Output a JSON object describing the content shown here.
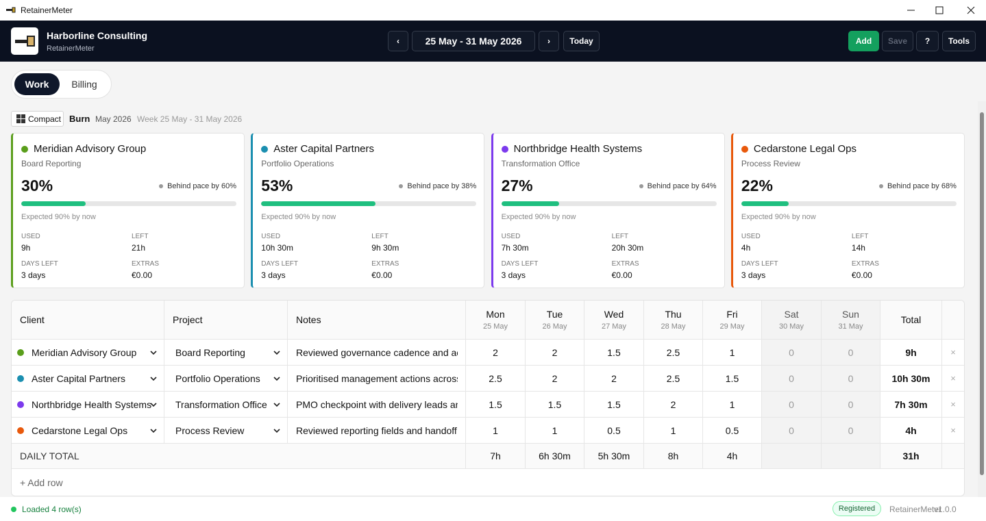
{
  "window": {
    "title": "RetainerMeter"
  },
  "header": {
    "company": "Harborline Consulting",
    "app": "RetainerMeter",
    "prev": "‹",
    "range": "25 May - 31 May 2026",
    "next": "›",
    "today": "Today",
    "add": "Add",
    "save": "Save",
    "help": "?",
    "tools": "Tools"
  },
  "tabs": [
    "Work",
    "Billing"
  ],
  "toolbar": {
    "compact": "Compact",
    "burn": "Burn",
    "month": "May 2026",
    "week": "Week 25 May - 31 May 2026"
  },
  "cards": [
    {
      "client": "Meridian Advisory Group",
      "color": "#5a9e1b",
      "project": "Board Reporting",
      "percent": {
        "value": 30,
        "label": "30%"
      },
      "pace": "Behind pace by 60%",
      "expected": "Expected 90% by now",
      "used_label": "USED",
      "used": "9h",
      "left_label": "LEFT",
      "left": "21h",
      "days_label": "DAYS LEFT",
      "days": "3 days",
      "extras_label": "EXTRAS",
      "extras": "€0.00"
    },
    {
      "client": "Aster Capital Partners",
      "color": "#1b8fb0",
      "project": "Portfolio Operations",
      "percent": {
        "value": 53,
        "label": "53%"
      },
      "pace": "Behind pace by 38%",
      "expected": "Expected 90% by now",
      "used_label": "USED",
      "used": "10h 30m",
      "left_label": "LEFT",
      "left": "9h 30m",
      "days_label": "DAYS LEFT",
      "days": "3 days",
      "extras_label": "EXTRAS",
      "extras": "€0.00"
    },
    {
      "client": "Northbridge Health Systems",
      "color": "#7c3aed",
      "project": "Transformation Office",
      "percent": {
        "value": 27,
        "label": "27%"
      },
      "pace": "Behind pace by 64%",
      "expected": "Expected 90% by now",
      "used_label": "USED",
      "used": "7h 30m",
      "left_label": "LEFT",
      "left": "20h 30m",
      "days_label": "DAYS LEFT",
      "days": "3 days",
      "extras_label": "EXTRAS",
      "extras": "€0.00"
    },
    {
      "client": "Cedarstone Legal Ops",
      "color": "#e8590c",
      "project": "Process Review",
      "percent": {
        "value": 22,
        "label": "22%"
      },
      "pace": "Behind pace by 68%",
      "expected": "Expected 90% by now",
      "used_label": "USED",
      "used": "4h",
      "left_label": "LEFT",
      "left": "14h",
      "days_label": "DAYS LEFT",
      "days": "3 days",
      "extras_label": "EXTRAS",
      "extras": "€0.00"
    }
  ],
  "table": {
    "headers": {
      "client": "Client",
      "project": "Project",
      "notes": "Notes",
      "total": "Total",
      "days": [
        {
          "day": "Mon",
          "date": "25 May"
        },
        {
          "day": "Tue",
          "date": "26 May"
        },
        {
          "day": "Wed",
          "date": "27 May"
        },
        {
          "day": "Thu",
          "date": "28 May"
        },
        {
          "day": "Fri",
          "date": "29 May"
        },
        {
          "day": "Sat",
          "date": "30 May"
        },
        {
          "day": "Sun",
          "date": "31 May"
        }
      ]
    },
    "rows": [
      {
        "client": "Meridian Advisory Group",
        "color": "#5a9e1b",
        "project": "Board Reporting",
        "notes": "Reviewed governance cadence and actions",
        "hours": [
          "2",
          "2",
          "1.5",
          "2.5",
          "1",
          "0",
          "0"
        ],
        "total": "9h"
      },
      {
        "client": "Aster Capital Partners",
        "color": "#1b8fb0",
        "project": "Portfolio Operations",
        "notes": "Prioritised management actions across",
        "hours": [
          "2.5",
          "2",
          "2",
          "2.5",
          "1.5",
          "0",
          "0"
        ],
        "total": "10h 30m"
      },
      {
        "client": "Northbridge Health Systems",
        "color": "#7c3aed",
        "project": "Transformation Office",
        "notes": "PMO checkpoint with delivery leads and",
        "hours": [
          "1.5",
          "1.5",
          "1.5",
          "2",
          "1",
          "0",
          "0"
        ],
        "total": "7h 30m"
      },
      {
        "client": "Cedarstone Legal Ops",
        "color": "#e8590c",
        "project": "Process Review",
        "notes": "Reviewed reporting fields and handoff",
        "hours": [
          "1",
          "1",
          "0.5",
          "1",
          "0.5",
          "0",
          "0"
        ],
        "total": "4h"
      }
    ],
    "daily_total": {
      "label": "DAILY TOTAL",
      "values": [
        "7h",
        "6h 30m",
        "5h 30m",
        "8h",
        "4h"
      ],
      "total": "31h"
    },
    "add_row": "+ Add row"
  },
  "status": {
    "message": "Loaded 4 row(s)",
    "badge": "Registered",
    "app": "RetainerMeter",
    "version": "v1.0.0"
  }
}
